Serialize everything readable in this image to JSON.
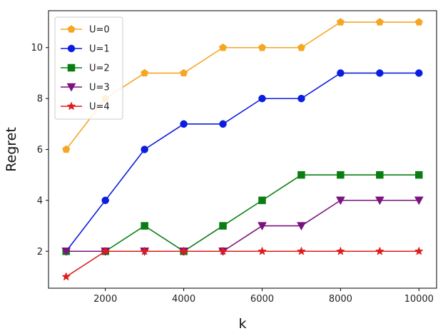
{
  "chart_data": {
    "type": "line",
    "title": "",
    "xlabel": "k",
    "ylabel": "Regret",
    "x": [
      1000,
      2000,
      3000,
      4000,
      5000,
      6000,
      7000,
      8000,
      9000,
      10000
    ],
    "xlim": [
      550,
      10450
    ],
    "ylim": [
      0.55,
      11.45
    ],
    "xticks": [
      2000,
      4000,
      6000,
      8000,
      10000
    ],
    "xtick_labels": [
      "2000",
      "4000",
      "6000",
      "8000",
      "10000"
    ],
    "yticks": [
      2,
      4,
      6,
      8,
      10
    ],
    "ytick_labels": [
      "2",
      "4",
      "6",
      "8",
      "10"
    ],
    "grid": false,
    "legend_position": "upper-left",
    "series": [
      {
        "name": "U=0",
        "color": "#f5a623",
        "marker": "pentagon",
        "values": [
          6,
          8,
          9,
          9,
          10,
          10,
          10,
          11,
          11,
          11
        ]
      },
      {
        "name": "U=1",
        "color": "#0b1ee0",
        "marker": "circle",
        "values": [
          2,
          4,
          6,
          7,
          7,
          8,
          8,
          9,
          9,
          9
        ]
      },
      {
        "name": "U=2",
        "color": "#0a7d12",
        "marker": "square",
        "values": [
          2,
          2,
          3,
          2,
          3,
          4,
          5,
          5,
          5,
          5
        ]
      },
      {
        "name": "U=3",
        "color": "#7b1280",
        "marker": "triangle-down",
        "values": [
          2,
          2,
          2,
          2,
          2,
          3,
          3,
          4,
          4,
          4
        ]
      },
      {
        "name": "U=4",
        "color": "#e01b1b",
        "marker": "star",
        "values": [
          1,
          2,
          2,
          2,
          2,
          2,
          2,
          2,
          2,
          2
        ]
      }
    ]
  }
}
